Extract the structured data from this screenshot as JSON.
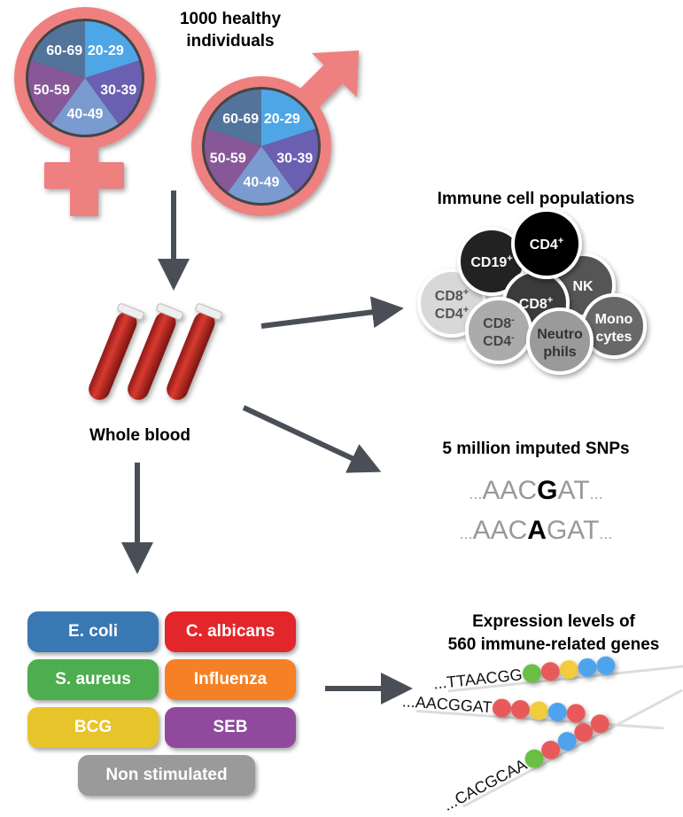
{
  "title": {
    "line1": "1000 healthy",
    "line2": "individuals"
  },
  "age_groups": [
    "20-29",
    "30-39",
    "40-49",
    "50-59",
    "60-69"
  ],
  "age_colors": [
    "#4fa6e6",
    "#6a5fb0",
    "#7a9bcf",
    "#875797",
    "#52739a"
  ],
  "symbol_color": "#ee8080",
  "arrow_color": "#4a4f57",
  "blood_label": "Whole blood",
  "immune": {
    "title": "Immune cell populations",
    "cells": [
      {
        "label": "CD19",
        "sup": "+",
        "label2": "",
        "sup2": "",
        "color": "#222222",
        "text": "#ffffff"
      },
      {
        "label": "CD4",
        "sup": "+",
        "label2": "",
        "sup2": "",
        "color": "#000000",
        "text": "#ffffff"
      },
      {
        "label": "NK",
        "sup": "",
        "label2": "",
        "sup2": "",
        "color": "#555555",
        "text": "#ffffff"
      },
      {
        "label": "CD8",
        "sup": "+",
        "label2": "",
        "sup2": "",
        "color": "#3a3a3a",
        "text": "#ffffff"
      },
      {
        "label": "CD8",
        "sup": "+",
        "label2": "CD4",
        "sup2": "+",
        "color": "#d8d8d8",
        "text": "#555555"
      },
      {
        "label": "CD8",
        "sup": "-",
        "label2": "CD4",
        "sup2": "-",
        "color": "#ababab",
        "text": "#444444"
      },
      {
        "label": "Neutro",
        "sup": "",
        "label2": "phils",
        "sup2": "",
        "color": "#9a9a9a",
        "text": "#333333"
      },
      {
        "label": "Mono",
        "sup": "",
        "label2": "cytes",
        "sup2": "",
        "color": "#686868",
        "text": "#ffffff"
      }
    ]
  },
  "snps": {
    "title": "5 million imputed SNPs",
    "seq1": {
      "pre": "AACG",
      "pre_plain": "AAC",
      "snp": "G",
      "post": "AT"
    },
    "seq2": {
      "pre_plain": "AAC",
      "snp": "A",
      "post": "GAT"
    },
    "ellipsis": "..."
  },
  "stimuli": [
    {
      "label": "E. coli",
      "color": "#3a78b4"
    },
    {
      "label": "C. albicans",
      "color": "#e2262b"
    },
    {
      "label": "S. aureus",
      "color": "#4dae4f"
    },
    {
      "label": "Influenza",
      "color": "#f58026"
    },
    {
      "label": "BCG",
      "color": "#e8c42b"
    },
    {
      "label": "SEB",
      "color": "#8f4a9e"
    },
    {
      "label": "Non stimulated",
      "color": "#9a9a9a"
    }
  ],
  "expression": {
    "title1": "Expression levels of",
    "title2": "560 immune-related genes",
    "rows": [
      {
        "seq": "...TTAACGG",
        "dots": [
          "#6abf45",
          "#e85a5a",
          "#f2cc3c",
          "#4fa3ee",
          "#4fa3ee"
        ]
      },
      {
        "seq": "...AACGGAT",
        "dots": [
          "#e85a5a",
          "#e85a5a",
          "#f2cc3c",
          "#4fa3ee",
          "#e85a5a"
        ]
      },
      {
        "seq": "...CACGCAA",
        "dots": [
          "#6abf45",
          "#e85a5a",
          "#4fa3ee",
          "#e85a5a",
          "#e85a5a"
        ]
      }
    ]
  }
}
